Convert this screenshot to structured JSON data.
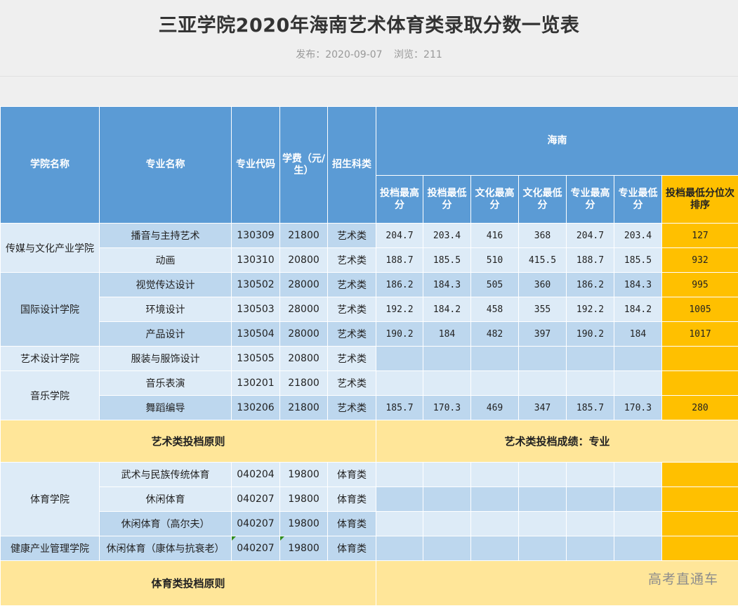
{
  "page": {
    "title": "三亚学院2020年海南艺术体育类录取分数一览表",
    "publish_label": "发布：2020-09-07",
    "views_label": "浏览：211",
    "watermark": "高考直通车"
  },
  "table": {
    "headers": {
      "college": "学院名称",
      "major": "专业名称",
      "code": "专业代码",
      "fee": "学费（元/生）",
      "category": "招生科类",
      "region": "海南",
      "toudang_max": "投档最高分",
      "toudang_min": "投档最低分",
      "wenhua_max": "文化最高分",
      "wenhua_min": "文化最低分",
      "zhuanye_max": "专业最高分",
      "zhuanye_min": "专业最低分",
      "rank": "投档最低分位次排序"
    },
    "colleges": {
      "media": "传媒与文化产业学院",
      "design": "国际设计学院",
      "artdesign": "艺术设计学院",
      "music": "音乐学院",
      "sports": "体育学院",
      "health": "健康产业管理学院"
    },
    "rows": [
      {
        "major": "播音与主持艺术",
        "code": "130309",
        "fee": "21800",
        "category": "艺术类",
        "tmax": "204.7",
        "tmin": "203.4",
        "wmax": "416",
        "wmin": "368",
        "zmax": "204.7",
        "zmin": "203.4",
        "rank": "127"
      },
      {
        "major": "动画",
        "code": "130310",
        "fee": "20800",
        "category": "艺术类",
        "tmax": "188.7",
        "tmin": "185.5",
        "wmax": "510",
        "wmin": "415.5",
        "zmax": "188.7",
        "zmin": "185.5",
        "rank": "932"
      },
      {
        "major": "视觉传达设计",
        "code": "130502",
        "fee": "28000",
        "category": "艺术类",
        "tmax": "186.2",
        "tmin": "184.3",
        "wmax": "505",
        "wmin": "360",
        "zmax": "186.2",
        "zmin": "184.3",
        "rank": "995"
      },
      {
        "major": "环境设计",
        "code": "130503",
        "fee": "28000",
        "category": "艺术类",
        "tmax": "192.2",
        "tmin": "184.2",
        "wmax": "458",
        "wmin": "355",
        "zmax": "192.2",
        "zmin": "184.2",
        "rank": "1005"
      },
      {
        "major": "产品设计",
        "code": "130504",
        "fee": "28000",
        "category": "艺术类",
        "tmax": "190.2",
        "tmin": "184",
        "wmax": "482",
        "wmin": "397",
        "zmax": "190.2",
        "zmin": "184",
        "rank": "1017"
      },
      {
        "major": "服装与服饰设计",
        "code": "130505",
        "fee": "20800",
        "category": "艺术类",
        "tmax": "",
        "tmin": "",
        "wmax": "",
        "wmin": "",
        "zmax": "",
        "zmin": "",
        "rank": ""
      },
      {
        "major": "音乐表演",
        "code": "130201",
        "fee": "21800",
        "category": "艺术类",
        "tmax": "",
        "tmin": "",
        "wmax": "",
        "wmin": "",
        "zmax": "",
        "zmin": "",
        "rank": ""
      },
      {
        "major": "舞蹈编导",
        "code": "130206",
        "fee": "21800",
        "category": "艺术类",
        "tmax": "185.7",
        "tmin": "170.3",
        "wmax": "469",
        "wmin": "347",
        "zmax": "185.7",
        "zmin": "170.3",
        "rank": "280"
      },
      {
        "major": "武术与民族传统体育",
        "code": "040204",
        "fee": "19800",
        "category": "体育类",
        "tmax": "",
        "tmin": "",
        "wmax": "",
        "wmin": "",
        "zmax": "",
        "zmin": "",
        "rank": ""
      },
      {
        "major": "休闲体育",
        "code": "040207",
        "fee": "19800",
        "category": "体育类",
        "tmax": "",
        "tmin": "",
        "wmax": "",
        "wmin": "",
        "zmax": "",
        "zmin": "",
        "rank": ""
      },
      {
        "major": "休闲体育（高尔夫）",
        "code": "040207",
        "fee": "19800",
        "category": "体育类",
        "tmax": "",
        "tmin": "",
        "wmax": "",
        "wmin": "",
        "zmax": "",
        "zmin": "",
        "rank": ""
      },
      {
        "major": "休闲体育（康体与抗衰老）",
        "code": "040207",
        "fee": "19800",
        "category": "体育类",
        "tmax": "",
        "tmin": "",
        "wmax": "",
        "wmin": "",
        "zmax": "",
        "zmin": "",
        "rank": ""
      }
    ],
    "art_principle_label": "艺术类投档原则",
    "art_principle_value": "艺术类投档成绩：专业",
    "sports_principle_label": "体育类投档原则",
    "sports_principle_value": ""
  }
}
